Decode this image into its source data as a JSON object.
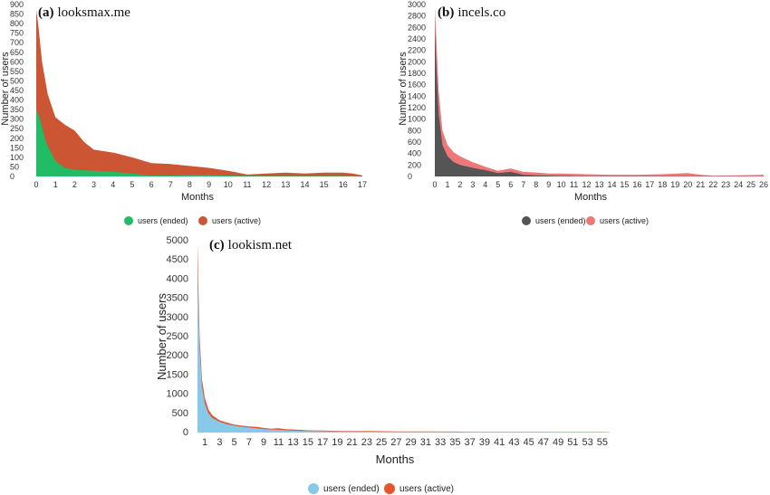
{
  "chart_data": [
    {
      "type": "area",
      "panel_label": "(a)",
      "title": "looksmax.me",
      "xlabel": "Months",
      "ylabel": "Number of users",
      "xlim": [
        0,
        17
      ],
      "ylim": [
        0,
        900
      ],
      "yticks": [
        0,
        50,
        100,
        150,
        200,
        250,
        300,
        350,
        400,
        450,
        500,
        550,
        600,
        650,
        700,
        750,
        800,
        850,
        900
      ],
      "xticks": [
        0,
        1,
        2,
        3,
        4,
        5,
        6,
        7,
        8,
        9,
        10,
        11,
        12,
        13,
        14,
        15,
        16,
        17
      ],
      "legend_position": "bottom",
      "series": [
        {
          "name": "users (active)",
          "color": "#cc5533",
          "x": [
            0,
            0.1,
            0.3,
            0.6,
            1,
            1.5,
            2,
            2.5,
            3,
            4,
            5,
            6,
            7,
            8,
            9,
            10,
            11,
            12,
            13,
            14,
            15,
            16,
            16.5,
            17
          ],
          "values": [
            870,
            800,
            600,
            430,
            310,
            270,
            240,
            180,
            140,
            125,
            100,
            70,
            65,
            55,
            45,
            30,
            10,
            15,
            20,
            15,
            20,
            20,
            15,
            5
          ]
        },
        {
          "name": "users (ended)",
          "color": "#22bb66",
          "x": [
            0,
            0.2,
            0.5,
            1,
            1.5,
            2,
            3,
            4,
            5,
            6,
            7,
            8,
            9,
            10,
            11,
            12,
            13,
            14,
            15,
            16,
            17
          ],
          "values": [
            350,
            300,
            180,
            80,
            45,
            35,
            30,
            25,
            15,
            5,
            5,
            10,
            8,
            5,
            3,
            3,
            3,
            3,
            3,
            3,
            0
          ]
        }
      ]
    },
    {
      "type": "area",
      "panel_label": "(b)",
      "title": "incels.co",
      "xlabel": "Months",
      "ylabel": "Number of users",
      "xlim": [
        0,
        26
      ],
      "ylim": [
        0,
        3000
      ],
      "yticks": [
        0,
        200,
        400,
        600,
        800,
        1000,
        1200,
        1400,
        1600,
        1800,
        2000,
        2200,
        2400,
        2600,
        2800,
        3000
      ],
      "xticks": [
        0,
        1,
        2,
        3,
        4,
        5,
        6,
        7,
        8,
        9,
        10,
        11,
        12,
        13,
        14,
        15,
        16,
        17,
        18,
        19,
        20,
        21,
        22,
        23,
        24,
        25,
        26
      ],
      "legend_position": "bottom",
      "series": [
        {
          "name": "users (active)",
          "color": "#ee7777",
          "x": [
            0,
            0.1,
            0.3,
            0.6,
            1,
            1.5,
            2,
            3,
            4,
            5,
            6,
            7,
            8,
            9,
            10,
            12,
            14,
            16,
            18,
            20,
            21,
            22,
            24,
            26
          ],
          "values": [
            2950,
            2500,
            1500,
            800,
            550,
            420,
            350,
            250,
            170,
            100,
            140,
            80,
            70,
            50,
            50,
            40,
            30,
            30,
            40,
            60,
            30,
            15,
            20,
            30
          ]
        },
        {
          "name": "users (ended)",
          "color": "#555555",
          "x": [
            0,
            0.1,
            0.3,
            0.6,
            1,
            1.5,
            2,
            3,
            4,
            5,
            6,
            7,
            8,
            10,
            12,
            14,
            16,
            18,
            20,
            22,
            24,
            26
          ],
          "values": [
            2600,
            2000,
            1100,
            550,
            350,
            250,
            200,
            150,
            110,
            60,
            80,
            30,
            20,
            10,
            5,
            5,
            3,
            3,
            3,
            3,
            3,
            0
          ]
        }
      ]
    },
    {
      "type": "area",
      "panel_label": "(c)",
      "title": "lookism.net",
      "xlabel": "Months",
      "ylabel": "Number of users",
      "xlim": [
        0,
        56
      ],
      "ylim": [
        0,
        5000
      ],
      "yticks": [
        0,
        500,
        1000,
        1500,
        2000,
        2500,
        3000,
        3500,
        4000,
        4500,
        5000
      ],
      "xticks": [
        1,
        3,
        5,
        7,
        9,
        11,
        13,
        15,
        17,
        19,
        21,
        23,
        25,
        27,
        29,
        31,
        33,
        35,
        37,
        39,
        41,
        43,
        45,
        47,
        49,
        51,
        53,
        55
      ],
      "legend_position": "bottom",
      "series": [
        {
          "name": "users (active)",
          "color": "#e8552a",
          "x": [
            0,
            0.1,
            0.3,
            0.6,
            1,
            1.5,
            2,
            3,
            4,
            5,
            6,
            7,
            8,
            9,
            10,
            11,
            12,
            13,
            14,
            15,
            17,
            19,
            21,
            23,
            25,
            27,
            29,
            31,
            33,
            35,
            37,
            39,
            41,
            43,
            45,
            47,
            49,
            51,
            53,
            55,
            56
          ],
          "values": [
            4950,
            4000,
            2500,
            1400,
            900,
            600,
            450,
            320,
            260,
            210,
            180,
            160,
            150,
            120,
            100,
            110,
            90,
            80,
            70,
            60,
            55,
            45,
            40,
            40,
            35,
            30,
            30,
            28,
            25,
            25,
            22,
            20,
            20,
            20,
            18,
            20,
            15,
            15,
            15,
            15,
            10
          ]
        },
        {
          "name": "users (ended)",
          "color": "#88c8e8",
          "x": [
            0,
            0.1,
            0.3,
            0.6,
            1,
            1.5,
            2,
            3,
            4,
            5,
            6,
            7,
            8,
            9,
            10,
            11,
            12,
            13,
            14,
            15,
            17,
            19,
            21,
            23,
            25,
            27,
            29,
            31,
            33,
            35,
            37,
            39,
            41,
            43,
            45,
            47,
            49,
            51,
            53,
            55,
            56
          ],
          "values": [
            4300,
            3500,
            2200,
            1200,
            750,
            500,
            380,
            280,
            220,
            180,
            150,
            130,
            110,
            90,
            80,
            70,
            60,
            50,
            45,
            40,
            35,
            30,
            28,
            25,
            22,
            20,
            18,
            16,
            15,
            13,
            12,
            10,
            10,
            10,
            10,
            10,
            8,
            8,
            8,
            8,
            5
          ]
        }
      ]
    }
  ]
}
